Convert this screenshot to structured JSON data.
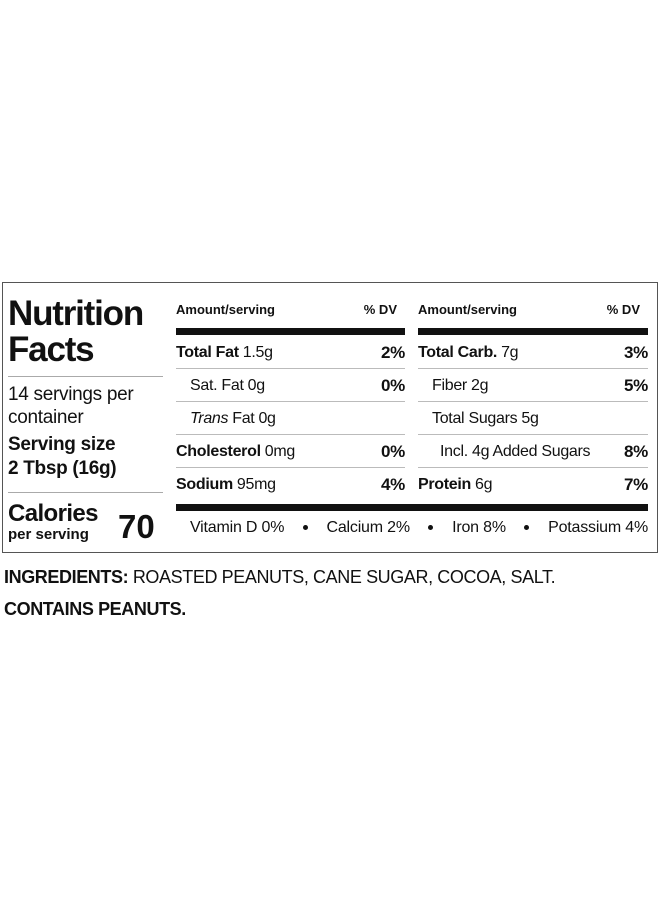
{
  "label": {
    "title": [
      "Nutrition",
      "Facts"
    ],
    "servings": "14 servings per container",
    "serving_size_label": "Serving size",
    "serving_size": "2 Tbsp (16g)",
    "calories_label": "Calories",
    "calories_sub": "per serving",
    "calories": 70,
    "columns": [
      {
        "header_amount": "Amount/serving",
        "header_dv": "% DV",
        "rows": [
          {
            "name": "Total Fat",
            "bold": true,
            "amount": "1.5g",
            "dv": "2%"
          },
          {
            "name": "Sat. Fat",
            "amount": "0g",
            "dv": "0%"
          },
          {
            "italic": "Trans",
            "name": "Fat",
            "amount": "0g"
          },
          {
            "name": "Cholesterol",
            "bold": true,
            "amount": "0mg",
            "dv": "0%"
          },
          {
            "name": "Sodium",
            "bold": true,
            "amount": "95mg",
            "dv": "4%"
          }
        ]
      },
      {
        "header_amount": "Amount/serving",
        "header_dv": "% DV",
        "rows": [
          {
            "name": "Total Carb.",
            "bold": true,
            "amount": "7g",
            "dv": "3%"
          },
          {
            "name": "Fiber",
            "amount": "2g",
            "dv": "5%"
          },
          {
            "name": "Total Sugars",
            "amount": "5g"
          },
          {
            "name": "Incl. 4g Added Sugars",
            "dv": "8%"
          },
          {
            "name": "Protein",
            "bold": true,
            "amount": "6g",
            "dv": "7%"
          }
        ]
      }
    ],
    "vitamins": [
      "Vitamin D 0%",
      "Calcium 2%",
      "Iron 8%",
      "Potassium 4%"
    ]
  },
  "ingredients": {
    "label": "INGREDIENTS:",
    "text": "ROASTED PEANUTS, CANE SUGAR, COCOA, SALT.",
    "allergens": "CONTAINS PEANUTS."
  }
}
